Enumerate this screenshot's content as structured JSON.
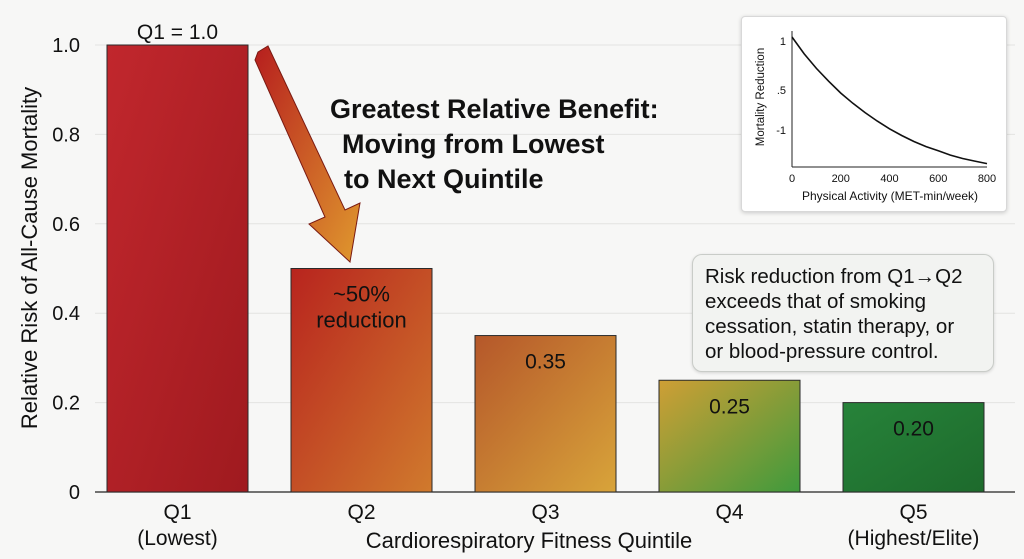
{
  "chart_data": [
    {
      "type": "bar",
      "title": "",
      "xlabel": "Cardiorespiratory Fitness Quintile",
      "ylabel": "Relative Risk of All-Cause Mortality",
      "ylim": [
        0,
        1.0
      ],
      "yticks": [
        "0",
        "0.2",
        "0.4",
        "0.6",
        "0.8",
        "1.0"
      ],
      "grid": true,
      "categories": [
        {
          "name": "Q1",
          "sub": "(Lowest)"
        },
        {
          "name": "Q2",
          "sub": ""
        },
        {
          "name": "Q3",
          "sub": ""
        },
        {
          "name": "Q4",
          "sub": ""
        },
        {
          "name": "Q5",
          "sub": "(Highest/Elite)"
        }
      ],
      "values": [
        1.0,
        0.5,
        0.35,
        0.25,
        0.2
      ],
      "data_labels": [
        "Q1 = 1.0",
        "~50%|reduction",
        "0.35",
        "0.25",
        "0.20"
      ],
      "colors": {
        "bar1": [
          "#c1272d",
          "#9f1a1f"
        ],
        "bar2": [
          "#b8241e",
          "#d07a2d"
        ],
        "bar3": [
          "#b5572a",
          "#d8a43a"
        ],
        "bar4": [
          "#cf9f35",
          "#3f9a3c"
        ],
        "bar5": [
          "#27833a",
          "#1d6a2c"
        ],
        "arrow": [
          "#b61e1e",
          "#e0992e"
        ]
      },
      "annotation_headline": [
        "Greatest Relative Benefit:",
        "Moving from Lowest",
        "to Next Quintile"
      ],
      "annotation_note": [
        "Risk reduction from Q1→Q2",
        "exceeds that of smoking",
        "cessation, statin therapy, or",
        "or blood-pressure control."
      ]
    },
    {
      "type": "line",
      "title": "",
      "xlabel": "Physical Activity (MET-min/week)",
      "ylabel": "Mortality Reduction",
      "xlim": [
        0,
        800
      ],
      "xticks": [
        "0",
        "200",
        "400",
        "600",
        "800"
      ],
      "yticks": [
        "1",
        ".5",
        "-1"
      ],
      "series": [
        {
          "x": [
            0,
            50,
            100,
            150,
            200,
            250,
            300,
            350,
            400,
            450,
            500,
            550,
            600,
            650,
            700,
            750,
            800
          ],
          "y": [
            1.23,
            1.03,
            0.86,
            0.71,
            0.57,
            0.45,
            0.34,
            0.24,
            0.15,
            0.07,
            0.0,
            -0.06,
            -0.11,
            -0.16,
            -0.2,
            -0.23,
            -0.26
          ]
        }
      ]
    }
  ]
}
